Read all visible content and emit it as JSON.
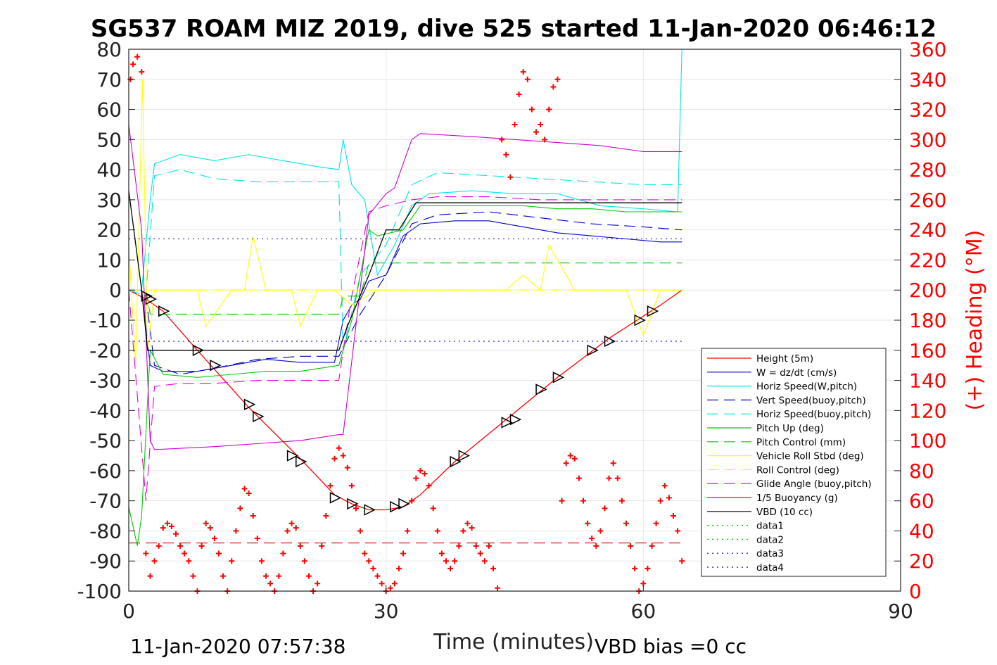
{
  "chart_data": {
    "type": "line",
    "title": "SG537 ROAM MIZ 2019, dive 525 started 11-Jan-2020 06:46:12",
    "xlabel": "Time (minutes)",
    "ylabel_right": "(+) Heading (°M)",
    "footer_left": "11-Jan-2020 07:57:38",
    "footer_right": "VBD bias =0 cc",
    "xlim": [
      0,
      90
    ],
    "ylim": [
      -100,
      80
    ],
    "ylim_right": [
      0,
      360
    ],
    "x_ticks": [
      "0",
      "30",
      "60",
      "90"
    ],
    "y_ticks": [
      "80",
      "70",
      "60",
      "50",
      "40",
      "30",
      "20",
      "10",
      "0",
      "-10",
      "-20",
      "-30",
      "-40",
      "-50",
      "-60",
      "-70",
      "-80",
      "-90",
      "-100"
    ],
    "y_right_ticks": [
      "360",
      "340",
      "320",
      "300",
      "280",
      "260",
      "240",
      "220",
      "200",
      "180",
      "160",
      "140",
      "120",
      "100",
      "80",
      "60",
      "40",
      "20",
      "0"
    ],
    "grid": true,
    "legend_position": "bottom-right",
    "series": [
      {
        "name": "Height (5m)",
        "color": "#ff0000",
        "style": "solid",
        "x": [
          0,
          2,
          4,
          8,
          14,
          20,
          24,
          26,
          28,
          30,
          32,
          34,
          38,
          44,
          50,
          56,
          62,
          64.5
        ],
        "y": [
          0,
          -3,
          -7,
          -20,
          -39,
          -56,
          -68,
          -71,
          -73,
          -73,
          -72,
          -68,
          -57,
          -43,
          -29,
          -16,
          -5,
          0
        ]
      },
      {
        "name": "W = dz/dt (cm/s)",
        "color": "#0000cc",
        "style": "solid",
        "x": [
          0,
          1.5,
          2.5,
          4,
          8,
          12,
          16,
          20,
          24,
          25,
          26,
          27,
          28,
          30,
          32,
          34,
          38,
          42,
          46,
          50,
          54,
          58,
          62,
          64.5
        ],
        "y": [
          0,
          0,
          -25,
          -27,
          -27,
          -25,
          -23,
          -24,
          -24,
          -10,
          -5,
          -3,
          3,
          5,
          18,
          22,
          23,
          23,
          21,
          19,
          18,
          17,
          16,
          16
        ]
      },
      {
        "name": "Horiz Speed(W,pitch)",
        "color": "#00e5e5",
        "style": "solid",
        "x": [
          0,
          1.5,
          2.5,
          3,
          6,
          10,
          14,
          18,
          22,
          24.5,
          25,
          26,
          27.5,
          29,
          31,
          33,
          35,
          40,
          45,
          50,
          55,
          60,
          64,
          64.5
        ],
        "y": [
          0,
          0,
          30,
          42,
          45,
          43,
          45,
          43,
          41,
          40,
          50,
          35,
          30,
          5,
          15,
          28,
          32,
          33,
          32,
          32,
          28,
          27,
          26,
          80
        ]
      },
      {
        "name": "Vert Speed(buoy,pitch)",
        "color": "#0000cc",
        "style": "dashed",
        "x": [
          0,
          2,
          3,
          6,
          10,
          15,
          20,
          24.5,
          27,
          30,
          33,
          36,
          42,
          48,
          54,
          60,
          64.5
        ],
        "y": [
          0,
          -2,
          -25,
          -28,
          -26,
          -23,
          -22,
          -22,
          -8,
          5,
          22,
          25,
          26,
          24,
          22,
          21,
          20
        ]
      },
      {
        "name": "Horiz Speed(buoy,pitch)",
        "color": "#00e5e5",
        "style": "dashed",
        "x": [
          0,
          2,
          3,
          6,
          10,
          15,
          20,
          24.5,
          25,
          27,
          30,
          33,
          36,
          42,
          48,
          54,
          60,
          64.5
        ],
        "y": [
          0,
          -2,
          38,
          40,
          37,
          36,
          36,
          36,
          -20,
          5,
          15,
          35,
          39,
          38,
          37,
          36,
          35,
          35
        ]
      },
      {
        "name": "Pitch Up (deg)",
        "color": "#00cc00",
        "style": "solid",
        "x": [
          0,
          1,
          1.5,
          2.5,
          4,
          8,
          12,
          16,
          20,
          24.5,
          26,
          28,
          29,
          32,
          34,
          38,
          42,
          46,
          50,
          54,
          58,
          62,
          64.5
        ],
        "y": [
          -72,
          -85,
          -75,
          -20,
          -28,
          -29,
          -28,
          -27,
          -27,
          -25,
          -10,
          20,
          18,
          20,
          28,
          28,
          28,
          28,
          27,
          27,
          26,
          26,
          26
        ]
      },
      {
        "name": "Pitch Control (mm)",
        "color": "#00cc00",
        "style": "dashed",
        "x": [
          0,
          2,
          2.5,
          24.5,
          25,
          26,
          27,
          28,
          29,
          33,
          64.5
        ],
        "y": [
          0,
          0,
          -8,
          -8,
          -2,
          -2,
          -2,
          9,
          9,
          9,
          9
        ]
      },
      {
        "name": "Vehicle Roll Stbd (deg)",
        "color": "#ffff00",
        "style": "solid",
        "x": [
          0,
          0.8,
          1.6,
          2.2,
          3,
          6,
          8,
          9,
          12,
          13.5,
          14.5,
          16,
          19,
          20,
          22,
          24,
          26,
          29,
          32,
          35,
          38,
          44,
          46,
          48,
          49,
          52,
          55,
          58,
          60,
          62,
          64.5
        ],
        "y": [
          15,
          -25,
          70,
          -20,
          0,
          0,
          0,
          -12,
          0,
          0,
          18,
          0,
          0,
          -12,
          0,
          0,
          -5,
          0,
          0,
          0,
          0,
          0,
          5,
          0,
          15,
          0,
          0,
          0,
          -15,
          0,
          0
        ]
      },
      {
        "name": "Roll Control (deg)",
        "color": "#ffff00",
        "style": "dashed",
        "x": [
          0,
          2,
          3,
          64.5
        ],
        "y": [
          0,
          0,
          0,
          0
        ]
      },
      {
        "name": "Glide Angle (buoy,pitch)",
        "color": "#e600e6",
        "style": "dashed",
        "x": [
          0,
          2,
          3,
          6,
          10,
          15,
          20,
          24.5,
          25,
          26,
          28,
          30,
          33,
          36,
          42,
          48,
          54,
          60,
          64.5
        ],
        "y": [
          0,
          -70,
          -32,
          -31,
          -31,
          -30,
          -30,
          -30,
          -20,
          -2,
          26,
          28,
          30,
          31,
          31,
          30,
          30,
          30,
          30
        ]
      },
      {
        "name": "1/5 Buoyancy (g)",
        "color": "#cc00cc",
        "style": "solid",
        "x": [
          0,
          1.5,
          2.5,
          3,
          10,
          20,
          24.5,
          25,
          28,
          30,
          31,
          33,
          34,
          40,
          45,
          50,
          55,
          60,
          64.5
        ],
        "y": [
          55,
          20,
          -50,
          -53,
          -52,
          -50,
          -48,
          -48,
          25,
          32,
          34,
          50,
          52,
          51,
          50,
          49,
          48,
          46,
          46
        ]
      },
      {
        "name": "VBD (10 cc)",
        "color": "#000000",
        "style": "solid",
        "x": [
          0,
          1.5,
          2.2,
          2.5,
          24.5,
          25.5,
          28,
          30,
          31.5,
          33.5,
          64.5
        ],
        "y": [
          33,
          0,
          -20,
          -20,
          -20,
          -12,
          5,
          20,
          20,
          29,
          29
        ]
      },
      {
        "name": "data1",
        "color": "#00cc00",
        "style": "dotted",
        "x": [],
        "y": []
      },
      {
        "name": "data2",
        "color": "#00cc00",
        "style": "dotted",
        "x": [],
        "y": []
      },
      {
        "name": "data3",
        "color": "#0000cc",
        "style": "dotted",
        "x": [
          0,
          64.5
        ],
        "y": [
          17,
          17
        ]
      },
      {
        "name": "data4",
        "color": "#0000cc",
        "style": "dotted",
        "x": [
          0,
          64.5
        ],
        "y": [
          -17,
          -17
        ]
      }
    ],
    "reference_line": {
      "color": "#cc0000",
      "style": "dashed",
      "x": [
        0,
        64.5
      ],
      "y": [
        -84,
        -84
      ]
    },
    "heading": {
      "color": "#ff0000",
      "marker": "+",
      "axis": "right",
      "x": [
        0.2,
        0.5,
        1.0,
        1.5,
        2.0,
        2.5,
        3.0,
        3.5,
        4.0,
        4.5,
        5.0,
        5.5,
        6.0,
        6.5,
        7.0,
        7.5,
        8.0,
        8.5,
        9.0,
        9.5,
        10.0,
        10.5,
        11.0,
        11.5,
        12.0,
        12.5,
        13.0,
        13.5,
        14.0,
        14.5,
        15.0,
        15.5,
        16.0,
        16.5,
        17.0,
        17.5,
        18.0,
        18.5,
        19.0,
        19.5,
        20.0,
        20.5,
        21.0,
        21.5,
        22.0,
        22.5,
        23.0,
        23.5,
        24.0,
        24.5,
        25.0,
        25.5,
        26.0,
        26.5,
        27.0,
        27.5,
        28.0,
        28.5,
        29.0,
        29.5,
        30.0,
        30.5,
        31.0,
        31.5,
        32.0,
        32.5,
        33.0,
        33.5,
        34.0,
        34.5,
        35.0,
        35.5,
        36.0,
        36.5,
        37.0,
        37.5,
        38.0,
        38.5,
        39.0,
        39.5,
        40.0,
        40.5,
        41.0,
        41.5,
        42.0,
        42.5,
        43.0,
        43.5,
        44.0,
        44.5,
        45.0,
        45.5,
        46.0,
        46.5,
        47.0,
        47.5,
        48.0,
        48.5,
        49.0,
        49.5,
        50.0,
        50.5,
        51.0,
        51.5,
        52.0,
        52.5,
        53.0,
        53.5,
        54.0,
        54.5,
        55.0,
        55.5,
        56.0,
        56.5,
        57.0,
        57.5,
        58.0,
        58.5,
        59.0,
        59.5,
        60.0,
        60.5,
        61.0,
        61.5,
        62.0,
        62.5,
        63.0,
        63.5,
        64.0,
        64.5
      ],
      "y": [
        340,
        350,
        355,
        345,
        25,
        10,
        20,
        30,
        42,
        45,
        43,
        38,
        30,
        25,
        20,
        10,
        0,
        30,
        45,
        42,
        35,
        25,
        10,
        0,
        20,
        40,
        55,
        68,
        65,
        50,
        35,
        20,
        10,
        5,
        0,
        10,
        25,
        40,
        45,
        42,
        30,
        20,
        10,
        0,
        5,
        30,
        50,
        70,
        88,
        95,
        90,
        82,
        70,
        55,
        40,
        25,
        20,
        15,
        10,
        5,
        0,
        2,
        5,
        15,
        25,
        40,
        60,
        75,
        80,
        78,
        70,
        55,
        40,
        25,
        20,
        15,
        20,
        30,
        40,
        45,
        42,
        30,
        25,
        20,
        30,
        15,
        2,
        300,
        290,
        275,
        310,
        330,
        345,
        340,
        320,
        305,
        310,
        300,
        320,
        335,
        340,
        60,
        85,
        90,
        88,
        75,
        60,
        45,
        35,
        30,
        40,
        55,
        75,
        85,
        75,
        60,
        45,
        30,
        15,
        0,
        5,
        15,
        30,
        45,
        60,
        70,
        62,
        50,
        40,
        20
      ]
    },
    "depth_triangles": {
      "x": [
        2,
        2.5,
        4,
        8,
        10,
        14,
        15,
        19,
        20,
        24,
        26,
        28,
        31,
        32,
        38,
        39,
        44,
        45,
        48,
        50,
        54,
        56,
        59.5,
        61
      ],
      "y": [
        -2,
        -3,
        -7,
        -20,
        -25,
        -38,
        -42,
        -55,
        -57,
        -69,
        -71,
        -73,
        -72,
        -71,
        -57,
        -55,
        -44,
        -43,
        -33,
        -29,
        -20,
        -17,
        -10,
        -7
      ]
    }
  }
}
